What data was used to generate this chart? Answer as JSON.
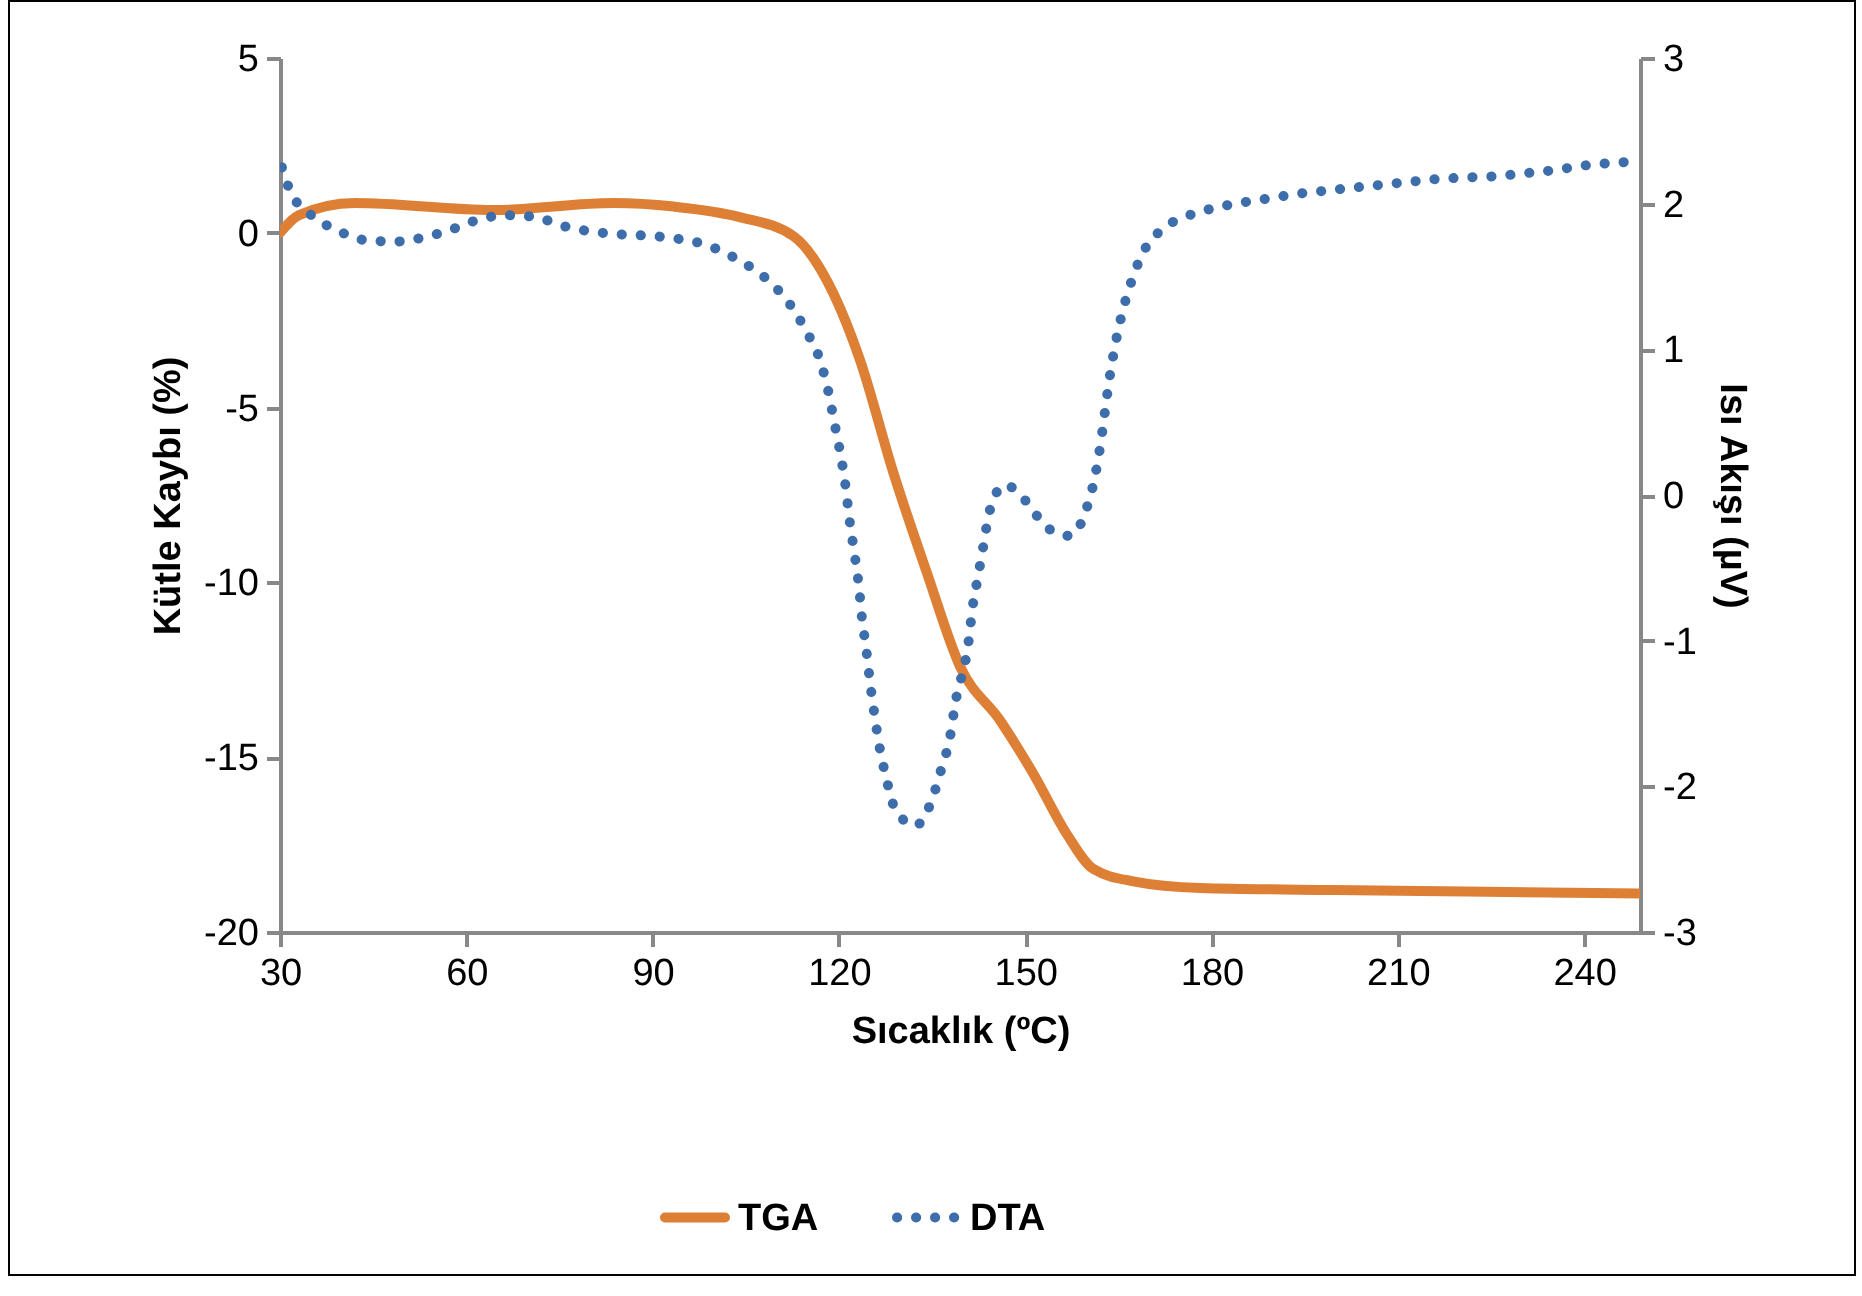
{
  "chart_data": {
    "type": "line",
    "xlabel": "Sıcaklık (ºC)",
    "ylabel": "Kütle Kaybı (%)",
    "y2label": "Isı Akışı (µV)",
    "legend": "bottom",
    "xlim": [
      30,
      249
    ],
    "xticks": [
      30,
      60,
      90,
      120,
      150,
      180,
      210,
      240
    ],
    "ylim": [
      -20,
      5
    ],
    "yticks": [
      -20,
      -15,
      -10,
      -5,
      0,
      5
    ],
    "y2lim": [
      -3,
      3
    ],
    "y2ticks": [
      -3,
      -2,
      -1,
      0,
      1,
      2,
      3
    ],
    "series": [
      {
        "name": "TGA",
        "color": "#dd7f35",
        "line_style": "solid",
        "x": [
          30,
          33,
          42,
          64.4,
          83.7,
          93.4,
          104,
          112.7,
          119.1,
          123.4,
          128.8,
          134.2,
          139.5,
          146,
          151.4,
          156.7,
          161,
          167.4,
          178.2,
          199.7,
          221,
          249
        ],
        "values": [
          0,
          0.5,
          0.85,
          0.65,
          0.85,
          0.75,
          0.45,
          -0.1,
          -1.73,
          -3.64,
          -6.88,
          -9.74,
          -12.4,
          -13.96,
          -15.5,
          -17.2,
          -18.2,
          -18.55,
          -18.74,
          -18.8,
          -18.84,
          -18.9
        ]
      },
      {
        "name": "DTA",
        "color": "#3d6eab",
        "line_style": "dotted",
        "axis": "y2",
        "x": [
          30.3,
          31.6,
          34.8,
          39.1,
          43.7,
          48.5,
          53.3,
          58.1,
          62.7,
          66.8,
          71,
          75.3,
          79.9,
          84.5,
          89.3,
          93.9,
          98.4,
          102.7,
          104.8,
          108.7,
          112.1,
          114.8,
          117,
          118.3,
          119.3,
          120.3,
          121.1,
          121.7,
          122.5,
          123.2,
          123.7,
          124.4,
          125,
          125.7,
          126.5,
          127.6,
          129.1,
          132.3,
          135,
          136.5,
          137.9,
          138.7,
          140.9,
          141.5,
          142.4,
          143.3,
          144.2,
          146.7,
          150.3,
          153.4,
          157.2,
          159.9,
          161.2,
          162.1,
          162.8,
          163.5,
          164.4,
          165.5,
          166.9,
          168.8,
          171.9,
          175.8,
          180.4,
          185.3,
          189.8,
          194.3,
          198.6,
          202.9,
          207.5,
          212,
          216.6,
          221.3,
          226.1,
          230.8,
          235.2,
          239.7,
          244.5,
          249
        ],
        "values": [
          2.25,
          2.09,
          1.93,
          1.82,
          1.75,
          1.74,
          1.77,
          1.83,
          1.9,
          1.92,
          1.91,
          1.85,
          1.81,
          1.79,
          1.78,
          1.76,
          1.72,
          1.64,
          1.59,
          1.47,
          1.31,
          1.12,
          0.92,
          0.71,
          0.49,
          0.27,
          0.05,
          -0.17,
          -0.4,
          -0.62,
          -0.84,
          -1.06,
          -1.28,
          -1.5,
          -1.72,
          -1.94,
          -2.16,
          -2.27,
          -2.09,
          -1.88,
          -1.66,
          -1.44,
          -1.0,
          -0.78,
          -0.56,
          -0.34,
          -0.12,
          0.07,
          -0.05,
          -0.22,
          -0.28,
          -0.09,
          0.12,
          0.34,
          0.56,
          0.78,
          1.01,
          1.23,
          1.44,
          1.65,
          1.82,
          1.91,
          1.97,
          2.01,
          2.04,
          2.07,
          2.09,
          2.11,
          2.13,
          2.15,
          2.17,
          2.18,
          2.19,
          2.21,
          2.23,
          2.26,
          2.28,
          2.29
        ]
      }
    ]
  }
}
